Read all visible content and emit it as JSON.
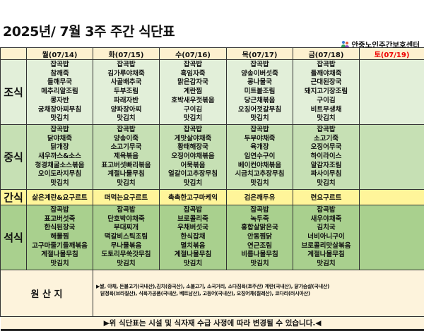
{
  "title": "2025년/ 7월 3주 주간 식단표",
  "organization": "안중노인주간보호센터",
  "days": [
    "월(07/14)",
    "화(07/15)",
    "수(07/16)",
    "목(07/17)",
    "금(07/18)",
    "토(07/19)"
  ],
  "meals": {
    "breakfast": {
      "label": "조식",
      "menus": [
        [
          "잡곡밥",
          "참깨죽",
          "들깨무국",
          "메추리알조림",
          "콩자반",
          "궁채장아찌무침",
          "맛김치"
        ],
        [
          "잡곡밥",
          "김가루야채죽",
          "사골배추국",
          "두부조림",
          "파래자반",
          "양파장아찌",
          "맛김치"
        ],
        [
          "잡곡밥",
          "흑임자죽",
          "맑은감자국",
          "계란찜",
          "호박새우젓볶음",
          "구이김",
          "맛김치"
        ],
        [
          "잡곡밥",
          "양송이버섯죽",
          "콩나물국",
          "미트볼조림",
          "당근채볶음",
          "오징어젓갈무침",
          "맛김치"
        ],
        [
          "잡곡밥",
          "들깨야채죽",
          "근대된장국",
          "돼지고기장조림",
          "구이김",
          "비트무생채",
          "맛김치"
        ],
        []
      ]
    },
    "lunch": {
      "label": "중식",
      "menus": [
        [
          "잡곡밥",
          "닭야채죽",
          "닭개장",
          "새우까스&소스",
          "청경채굴소스볶음",
          "오이도라지무침",
          "맛김치"
        ],
        [
          "잡곡밥",
          "양송이죽",
          "소고기무국",
          "제육볶음",
          "표고버섯빠리볶음",
          "계절나물무침",
          "맛김치"
        ],
        [
          "잡곡밥",
          "게맛살야채죽",
          "황태해장국",
          "오징어야채볶음",
          "어묵볶음",
          "얼갈이고추장무침",
          "맛김치"
        ],
        [
          "잡곡밥",
          "두부야채죽",
          "육개장",
          "임연수구이",
          "베이컨야채볶음",
          "시금치고추장무침",
          "맛김치"
        ],
        [
          "잡곡밥",
          "소고기죽",
          "오징어무국",
          "하이라이스",
          "알감자조림",
          "짜사이무침",
          "맛김치"
        ],
        []
      ]
    },
    "snack": {
      "label": "간식",
      "menus": [
        "삶은계란&요구르트",
        "떠먹는요구르트",
        "촉촉한고구마케익",
        "검은깨두유",
        "련요구르트",
        ""
      ]
    },
    "dinner": {
      "label": "석식",
      "menus": [
        [
          "잡곡밥",
          "표고버섯죽",
          "한식된장국",
          "해물찜",
          "고구마줄기들깨볶음",
          "계절나물무침",
          "맛김치"
        ],
        [
          "잡곡밥",
          "단호박야채죽",
          "부대찌개",
          "떡갈비스틱조림",
          "무나물볶음",
          "도토리무쑥갓무침",
          "맛김치"
        ],
        [
          "잡곡밥",
          "브로콜리죽",
          "우채버섯국",
          "한식잡채",
          "멸치볶음",
          "계절나물무침",
          "맛김치"
        ],
        [
          "잡곡밥",
          "녹두죽",
          "홍합살맑은국",
          "안동찜닭",
          "연근조림",
          "비름나물무침",
          "맛김치"
        ],
        [
          "잡곡밥",
          "새우야채죽",
          "김치국",
          "너비아니구이",
          "브로콜리맛살볶음",
          "계절나물무침",
          "맛김치"
        ],
        []
      ]
    }
  },
  "origin": {
    "label": "원 산 지",
    "lines": [
      "▶쌀, 야채, 돈불고기(국내산),김치(중국산), 소불고기, 소국거리, 소다짐육(호주산) 계란(국내산), 닭가슴살(국내산)",
      "닭정육(브라질산), 식육가공품(국내산, 베트남산), 고등어(국내산), 오징어채(칠레산), 코다리(러시아산)"
    ]
  },
  "notice": "▶위 식단표는 시설 및 식자재 수급 사정에 따라 변경될 수 있습니다.◀",
  "colors": {
    "header": "#fdf0cf",
    "breakfast": "#e2efd9",
    "lunch": "#c6e0b4",
    "snack": "#fff59a",
    "dinner": "#a9d08e",
    "saturday": "#e00000"
  }
}
